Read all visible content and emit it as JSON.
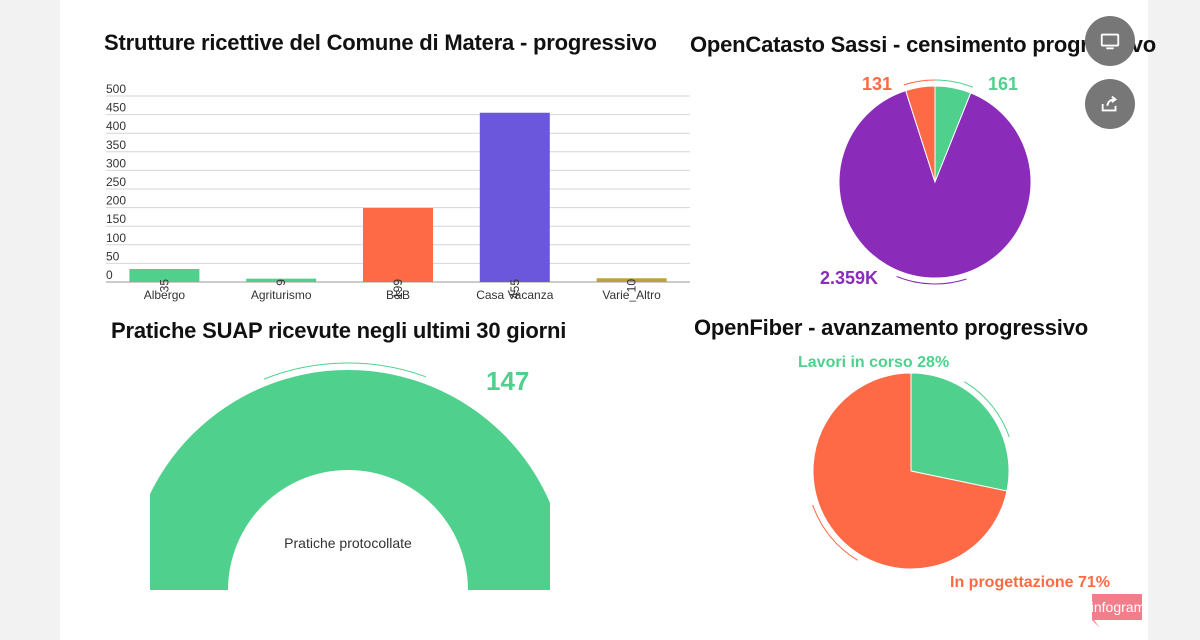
{
  "charts": {
    "bar": {
      "title": "Strutture ricettive del Comune di Matera - progressivo"
    },
    "pie1": {
      "title": "OpenCatasto Sassi - censimento progressivo"
    },
    "gauge": {
      "title": "Pratiche SUAP ricevute negli ultimi 30 giorni"
    },
    "pie2": {
      "title": "OpenFiber - avanzamento progressivo"
    }
  },
  "chart_data": [
    {
      "type": "bar",
      "title": "Strutture ricettive del Comune di Matera - progressivo",
      "categories": [
        "Albergo",
        "Agriturismo",
        "B&B",
        "Casa Vacanza",
        "Varie_Altro"
      ],
      "values": [
        35,
        9,
        199,
        455,
        10
      ],
      "data_labels": [
        "35",
        "9",
        "199",
        "455",
        "10"
      ],
      "colors": [
        "#4fd18d",
        "#4fd18d",
        "#fd6a45",
        "#6b57db",
        "#b7a43a"
      ],
      "y_ticks": [
        "0",
        "50",
        "100",
        "150",
        "200",
        "250",
        "300",
        "350",
        "400",
        "450",
        "500"
      ],
      "ylim": [
        0,
        500
      ],
      "grid": true
    },
    {
      "type": "pie",
      "title": "OpenCatasto Sassi - censimento progressivo",
      "labels": [
        "161",
        "2.359K",
        "131"
      ],
      "values": [
        161,
        2359,
        131
      ],
      "colors": [
        "#4fd18d",
        "#8a2bb9",
        "#fd6a45"
      ]
    },
    {
      "type": "gauge",
      "title": "Pratiche SUAP ricevute negli ultimi 30 giorni",
      "label": "Pratiche protocollate",
      "value": 147,
      "value_label": "147",
      "color": "#4fd18d"
    },
    {
      "type": "pie",
      "title": "OpenFiber - avanzamento progressivo",
      "labels": [
        "Lavori in corso 28%",
        "In progettazione 71%"
      ],
      "values": [
        28,
        71
      ],
      "colors": [
        "#4fd18d",
        "#fd6a45"
      ]
    }
  ],
  "ui": {
    "fab_icons": [
      "monitor-icon",
      "share-icon"
    ],
    "brand": "infogram",
    "brand_color": "#f27e8c"
  }
}
